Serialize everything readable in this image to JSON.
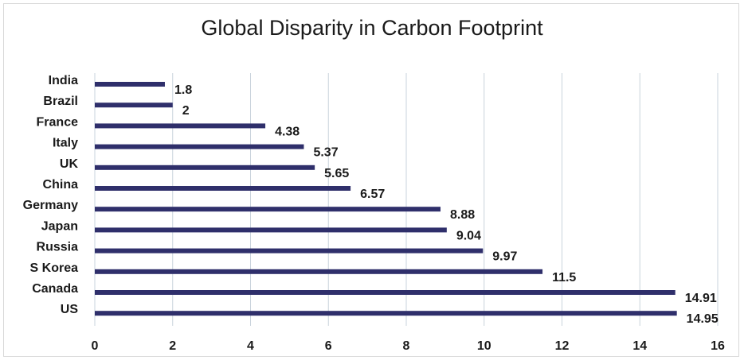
{
  "chart_data": {
    "type": "bar",
    "orientation": "horizontal",
    "title": "Global Disparity in Carbon Footprint",
    "xlabel": "",
    "ylabel": "",
    "categories": [
      "India",
      "Brazil",
      "France",
      "Italy",
      "UK",
      "China",
      "Germany",
      "Japan",
      "Russia",
      "S Korea",
      "Canada",
      "US"
    ],
    "values": [
      1.8,
      2,
      4.38,
      5.37,
      5.65,
      6.57,
      8.88,
      9.04,
      9.97,
      11.5,
      14.91,
      14.95
    ],
    "value_labels": [
      "1.8",
      "2",
      "4.38",
      "5.37",
      "5.65",
      "6.57",
      "8.88",
      "9.04",
      "9.97",
      "11.5",
      "14.91",
      "14.95"
    ],
    "xlim": [
      0,
      16
    ],
    "xticks": [
      "0",
      "2",
      "4",
      "6",
      "8",
      "10",
      "12",
      "14",
      "16"
    ],
    "grid": "vertical",
    "legend": "none",
    "bar_color": "#2f2f6b",
    "grid_color": "#c9d3dc"
  }
}
